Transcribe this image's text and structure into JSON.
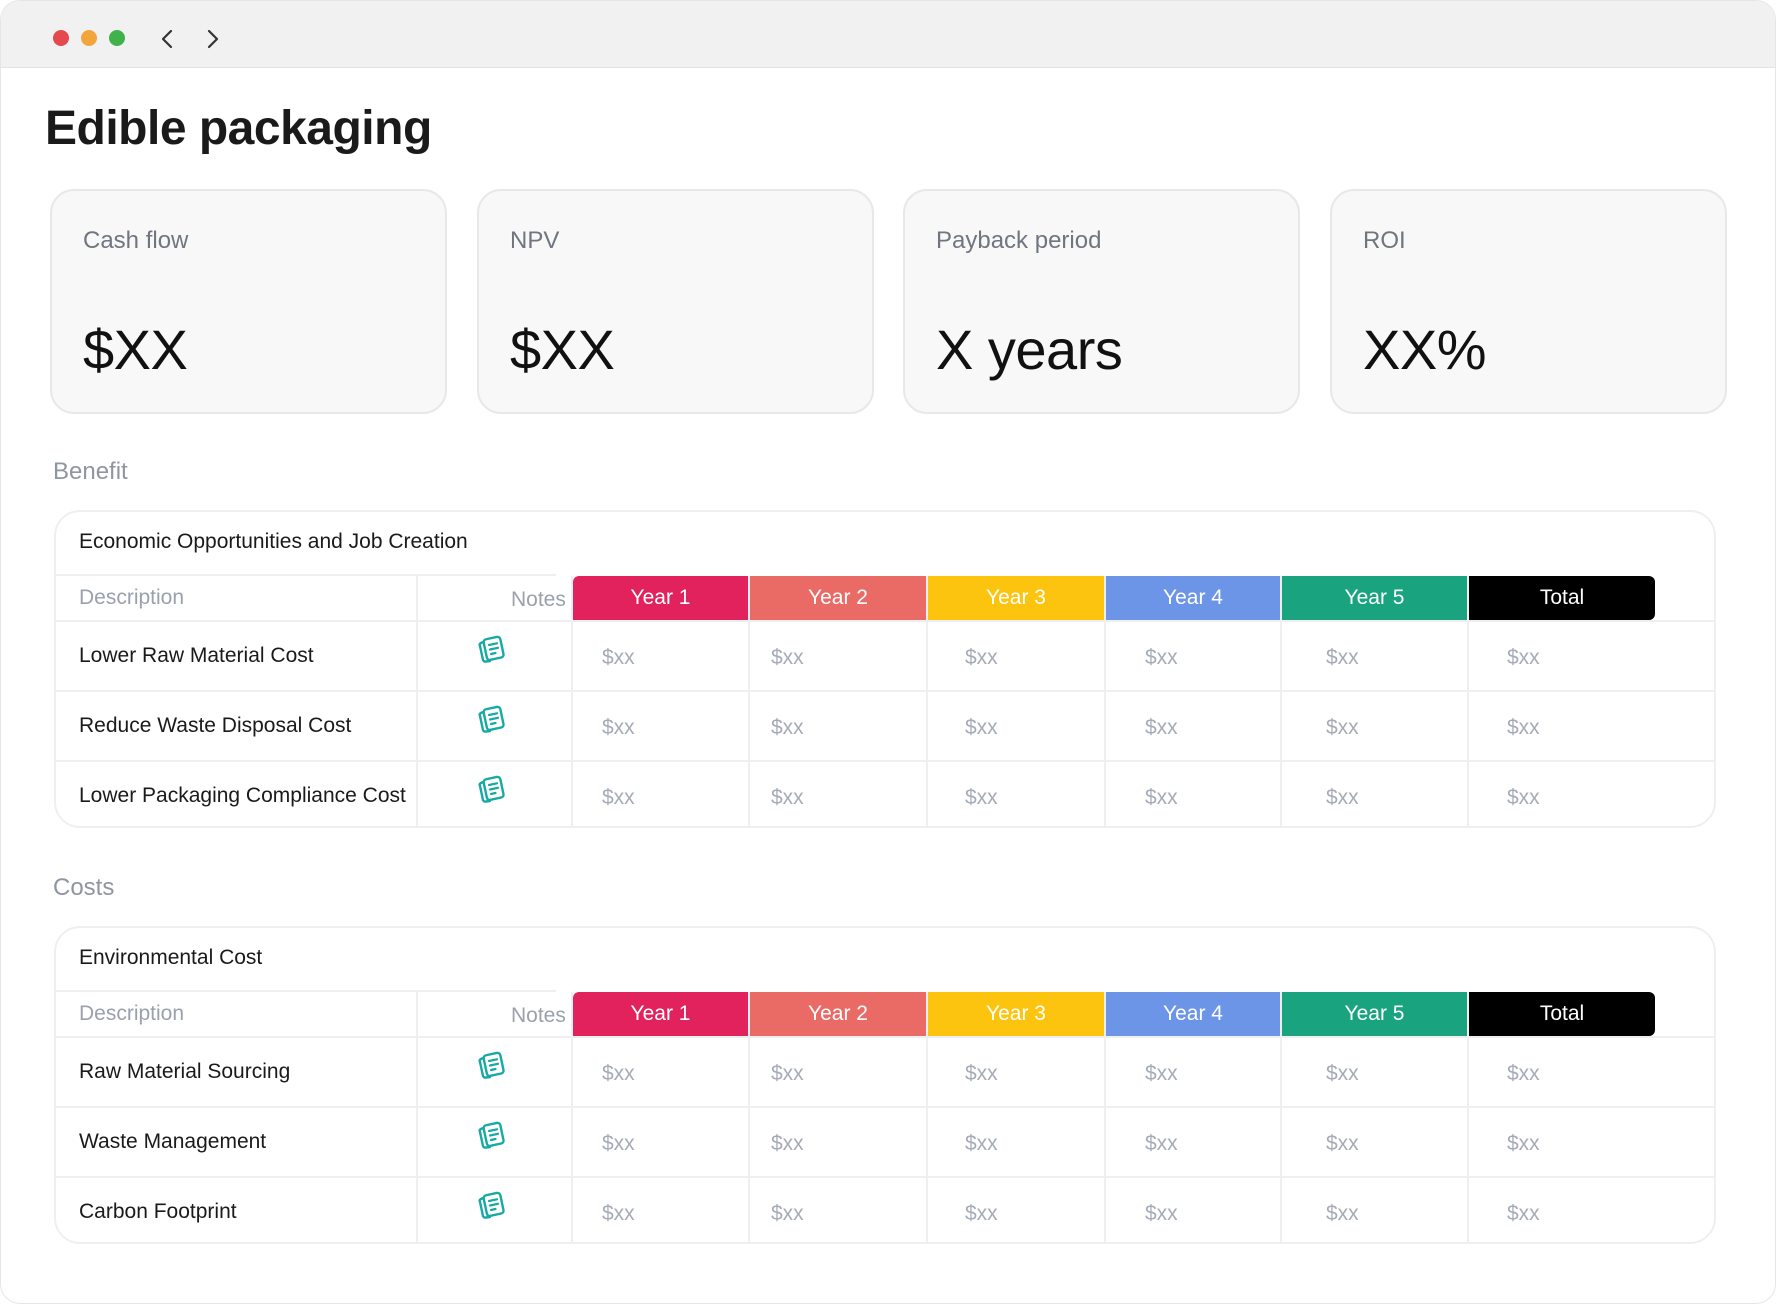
{
  "window": {
    "traffic_lights": [
      {
        "name": "close",
        "color": "#e5484d"
      },
      {
        "name": "minimize",
        "color": "#f2a53a"
      },
      {
        "name": "zoom",
        "color": "#3fb24a"
      }
    ]
  },
  "page": {
    "title": "Edible packaging"
  },
  "kpis": [
    {
      "label": "Cash flow",
      "value": "$XX"
    },
    {
      "label": "NPV",
      "value": "$XX"
    },
    {
      "label": "Payback period",
      "value": "X years"
    },
    {
      "label": "ROI",
      "value": "XX%"
    }
  ],
  "columns": {
    "description": "Description",
    "notes": "Notes",
    "years": [
      {
        "label": "Year 1",
        "color": "#e1225c"
      },
      {
        "label": "Year 2",
        "color": "#ea6a66"
      },
      {
        "label": "Year 3",
        "color": "#fcc40f"
      },
      {
        "label": "Year 4",
        "color": "#6c95e8"
      },
      {
        "label": "Year 5",
        "color": "#1aa37f"
      },
      {
        "label": "Total",
        "color": "#000000"
      }
    ]
  },
  "sections": [
    {
      "label": "Benefit",
      "card_title": "Economic Opportunities and Job Creation",
      "rows": [
        {
          "description": "Lower Raw Material Cost",
          "values": [
            "$xx",
            "$xx",
            "$xx",
            "$xx",
            "$xx",
            "$xx"
          ]
        },
        {
          "description": "Reduce Waste Disposal Cost",
          "values": [
            "$xx",
            "$xx",
            "$xx",
            "$xx",
            "$xx",
            "$xx"
          ]
        },
        {
          "description": "Lower Packaging Compliance Cost",
          "values": [
            "$xx",
            "$xx",
            "$xx",
            "$xx",
            "$xx",
            "$xx"
          ]
        }
      ]
    },
    {
      "label": "Costs",
      "card_title": "Environmental Cost",
      "rows": [
        {
          "description": "Raw Material Sourcing",
          "values": [
            "$xx",
            "$xx",
            "$xx",
            "$xx",
            "$xx",
            "$xx"
          ]
        },
        {
          "description": "Waste Management",
          "values": [
            "$xx",
            "$xx",
            "$xx",
            "$xx",
            "$xx",
            "$xx"
          ]
        },
        {
          "description": "Carbon Footprint",
          "values": [
            "$xx",
            "$xx",
            "$xx",
            "$xx",
            "$xx",
            "$xx"
          ]
        }
      ]
    }
  ],
  "icons": {
    "notes": "notes-icon",
    "back": "chevron-left-icon",
    "forward": "chevron-right-icon"
  },
  "accent": {
    "notes_icon": "#19a9a5"
  }
}
